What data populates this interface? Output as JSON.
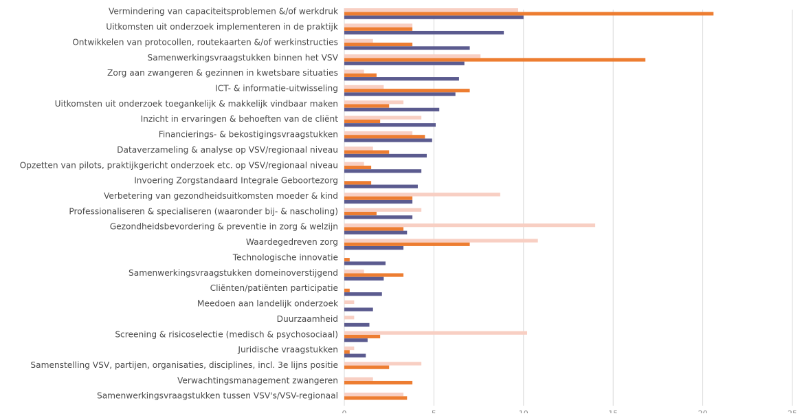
{
  "chart_data": {
    "type": "bar",
    "orientation": "horizontal",
    "xlim": [
      0,
      25
    ],
    "x_ticks": [
      "0",
      "5",
      "10",
      "15",
      "20",
      "25"
    ],
    "grid": true,
    "legend": "none",
    "categories": [
      "Vermindering van capaciteitsproblemen &/of werkdruk",
      "Uitkomsten uit onderzoek implementeren in de praktijk",
      "Ontwikkelen van protocollen, routekaarten &/of werkinstructies",
      "Samenwerkingsvraagstukken binnen het VSV",
      "Zorg aan zwangeren & gezinnen in kwetsbare situaties",
      "ICT- & informatie-uitwisseling",
      "Uitkomsten uit onderzoek toegankelijk & makkelijk vindbaar maken",
      "Inzicht in ervaringen & behoeften van de cliënt",
      "Financierings- & bekostigingsvraagstukken",
      "Dataverzameling & analyse op VSV/regionaal niveau",
      "Opzetten van pilots, praktijkgericht onderzoek etc. op VSV/regionaal niveau",
      "Invoering Zorgstandaard Integrale Geboortezorg",
      "Verbetering van gezondheidsuitkomsten moeder & kind",
      "Professionaliseren & specialiseren (waaronder bij- & nascholing)",
      "Gezondheidsbevordering & preventie in zorg & welzijn",
      "Waardegedreven zorg",
      "Technologische innovatie",
      "Samenwerkingsvraagstukken domeinoverstijgend",
      "Cliënten/patiënten participatie",
      "Meedoen aan landelijk onderzoek",
      "Duurzaamheid",
      "Screening & risicoselectie (medisch & psychosociaal)",
      "Juridische vraagstukken",
      "Samenstelling VSV, partijen, organisaties, disciplines,  incl. 3e lijns positie",
      "Verwachtingsmanagement zwangeren",
      "Samenwerkingsvraagstukken tussen VSV's/VSV-regionaal"
    ],
    "series": [
      {
        "color": "#f8cfc3",
        "values": [
          9.7,
          3.8,
          1.6,
          7.6,
          1.1,
          2.2,
          3.3,
          4.3,
          3.8,
          1.6,
          1.1,
          0,
          8.7,
          4.3,
          14.0,
          10.8,
          0,
          1.1,
          0,
          0.55,
          0.55,
          10.2,
          0.55,
          4.3,
          1.6,
          3.3
        ]
      },
      {
        "color": "#ed7d31",
        "values": [
          20.6,
          3.8,
          3.8,
          16.8,
          1.8,
          7.0,
          2.5,
          2.0,
          4.5,
          2.5,
          1.5,
          1.5,
          3.8,
          1.8,
          3.3,
          7.0,
          0.3,
          3.3,
          0.3,
          0,
          0,
          2.0,
          0.3,
          2.5,
          3.8,
          3.5
        ]
      },
      {
        "color": "#5b5b8f",
        "values": [
          10.0,
          8.9,
          7.0,
          6.7,
          6.4,
          6.2,
          5.3,
          5.1,
          4.9,
          4.6,
          4.3,
          4.1,
          3.8,
          3.8,
          3.5,
          3.3,
          2.3,
          2.2,
          2.1,
          1.6,
          1.4,
          1.3,
          1.2,
          0,
          0,
          0
        ]
      }
    ]
  }
}
